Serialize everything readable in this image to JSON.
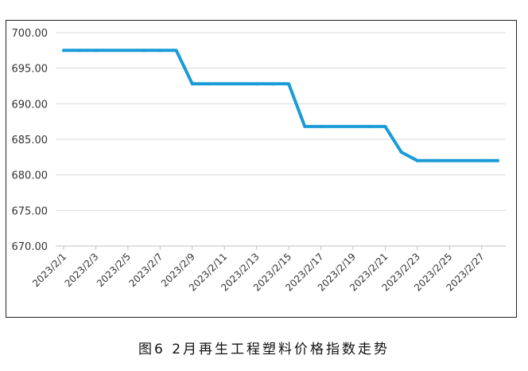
{
  "caption": "图6 2月再生工程塑料价格指数走势",
  "chart_data": {
    "type": "line",
    "title": "",
    "xlabel": "",
    "ylabel": "",
    "ylim": [
      670,
      700
    ],
    "yticks": [
      "670.00",
      "675.00",
      "680.00",
      "685.00",
      "690.00",
      "695.00",
      "700.00"
    ],
    "grid": true,
    "legend": "none",
    "line_color": "#1a9bd7",
    "x_tick_labels": [
      "2023/2/1",
      "2023/2/3",
      "2023/2/5",
      "2023/2/7",
      "2023/2/9",
      "2023/2/11",
      "2023/2/13",
      "2023/2/15",
      "2023/2/17",
      "2023/2/19",
      "2023/2/21",
      "2023/2/23",
      "2023/2/25",
      "2023/2/27"
    ],
    "x": [
      "2023/2/1",
      "2023/2/2",
      "2023/2/3",
      "2023/2/6",
      "2023/2/7",
      "2023/2/8",
      "2023/2/9",
      "2023/2/10",
      "2023/2/13",
      "2023/2/14",
      "2023/2/15",
      "2023/2/16",
      "2023/2/17",
      "2023/2/20",
      "2023/2/21",
      "2023/2/22",
      "2023/2/23",
      "2023/2/24",
      "2023/2/27",
      "2023/2/28"
    ],
    "values": [
      697.5,
      697.5,
      697.5,
      697.5,
      697.5,
      697.5,
      692.8,
      692.8,
      692.8,
      692.8,
      692.8,
      686.8,
      686.8,
      686.8,
      686.8,
      683.2,
      682.0,
      682.0,
      682.0,
      682.0
    ]
  }
}
